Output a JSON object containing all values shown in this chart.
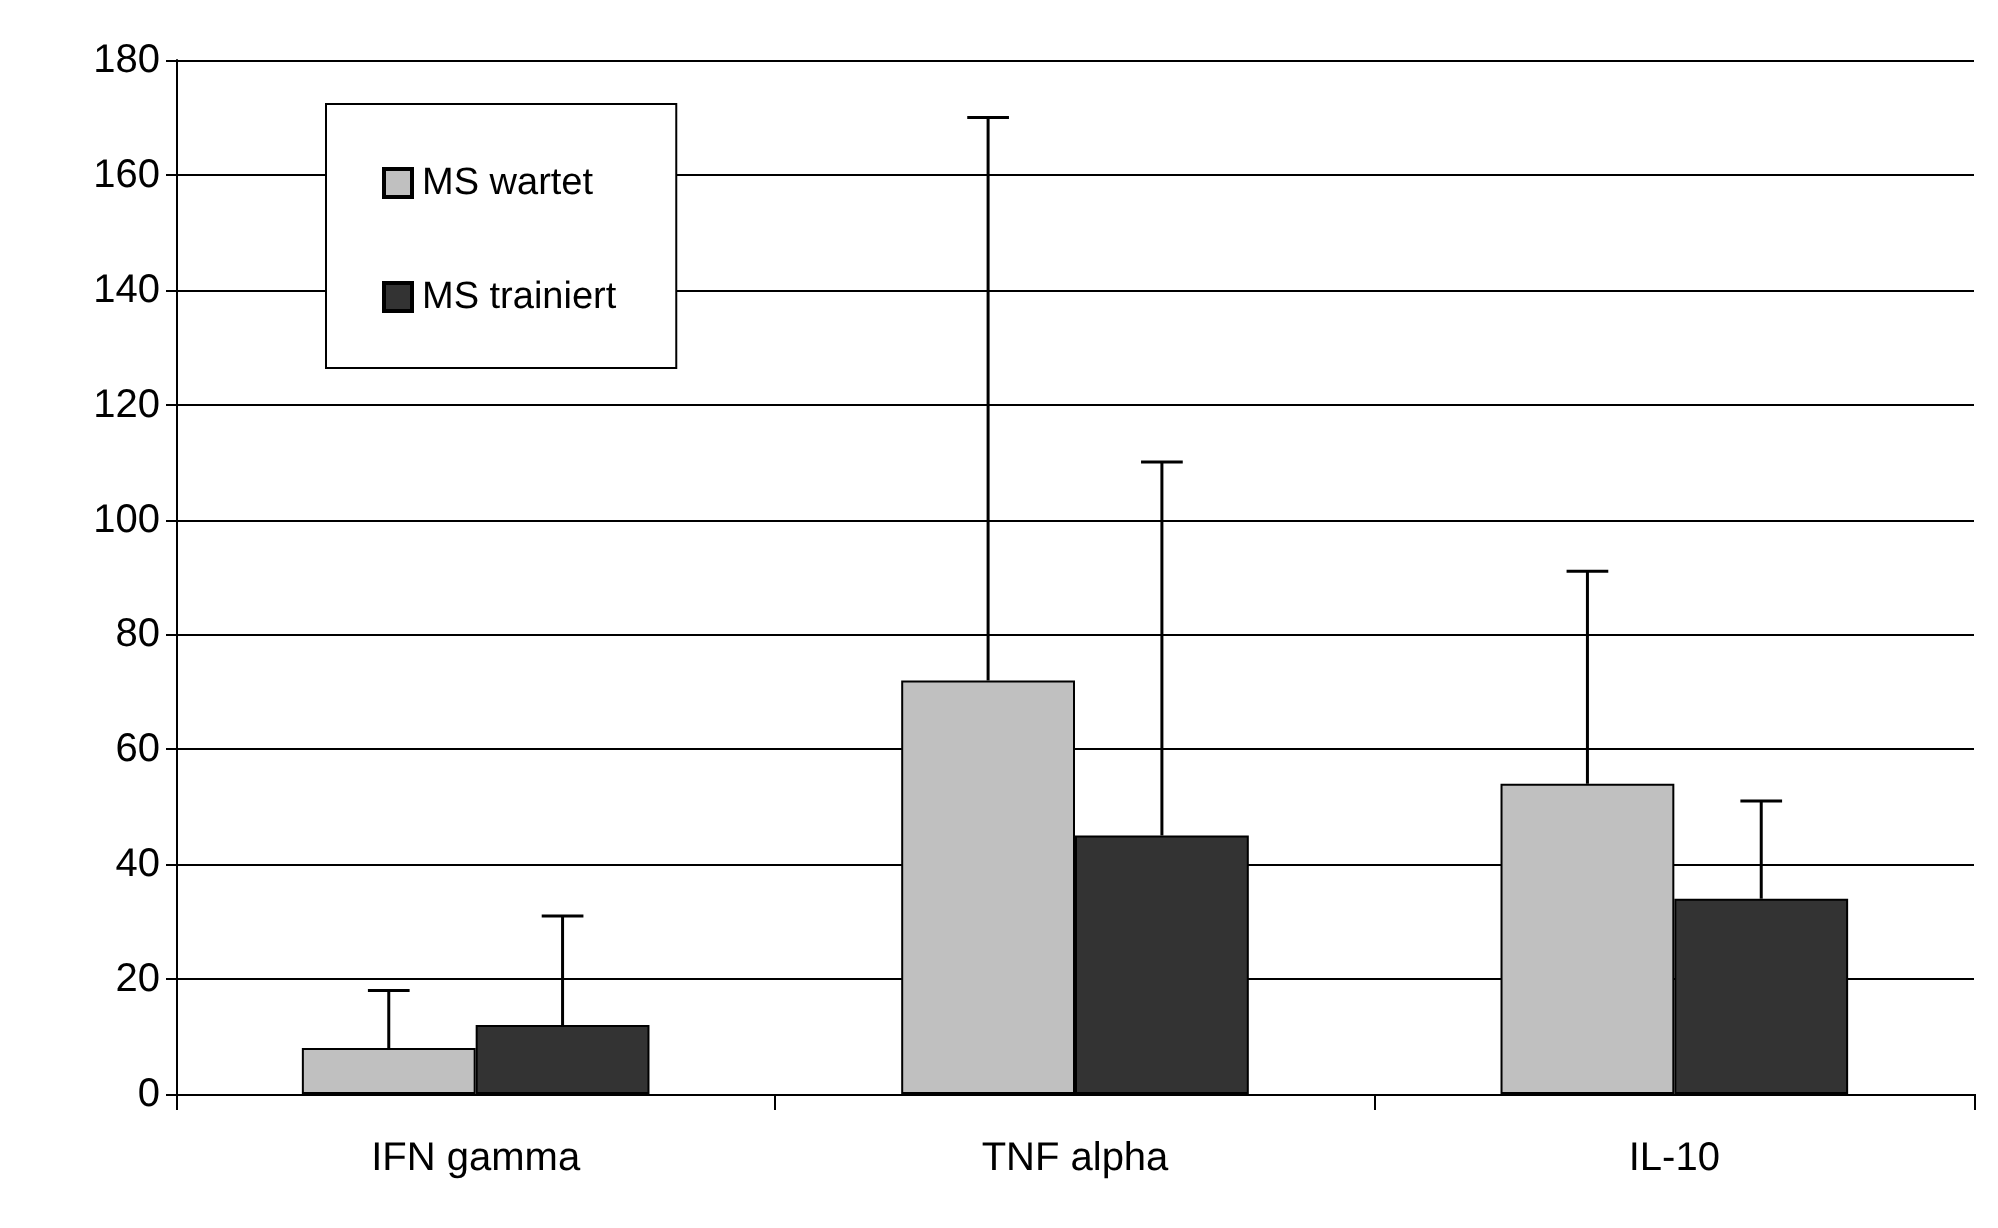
{
  "chart_data": {
    "type": "bar",
    "categories": [
      "IFN gamma",
      "TNF alpha",
      "IL-10"
    ],
    "series": [
      {
        "name": "MS wartet",
        "color": "#c0c0c0",
        "values": [
          8,
          72,
          54
        ],
        "errors": [
          [
            8,
            18
          ],
          [
            72,
            170
          ],
          [
            54,
            91
          ]
        ]
      },
      {
        "name": "MS trainiert",
        "color": "#333333",
        "values": [
          12,
          45,
          34
        ],
        "errors": [
          [
            12,
            31
          ],
          [
            45,
            110
          ],
          [
            34,
            51
          ]
        ]
      }
    ],
    "ylim": [
      0,
      180
    ],
    "yticks": [
      0,
      20,
      40,
      60,
      80,
      100,
      120,
      140,
      160,
      180
    ],
    "grid": "y",
    "legend": "top left"
  }
}
